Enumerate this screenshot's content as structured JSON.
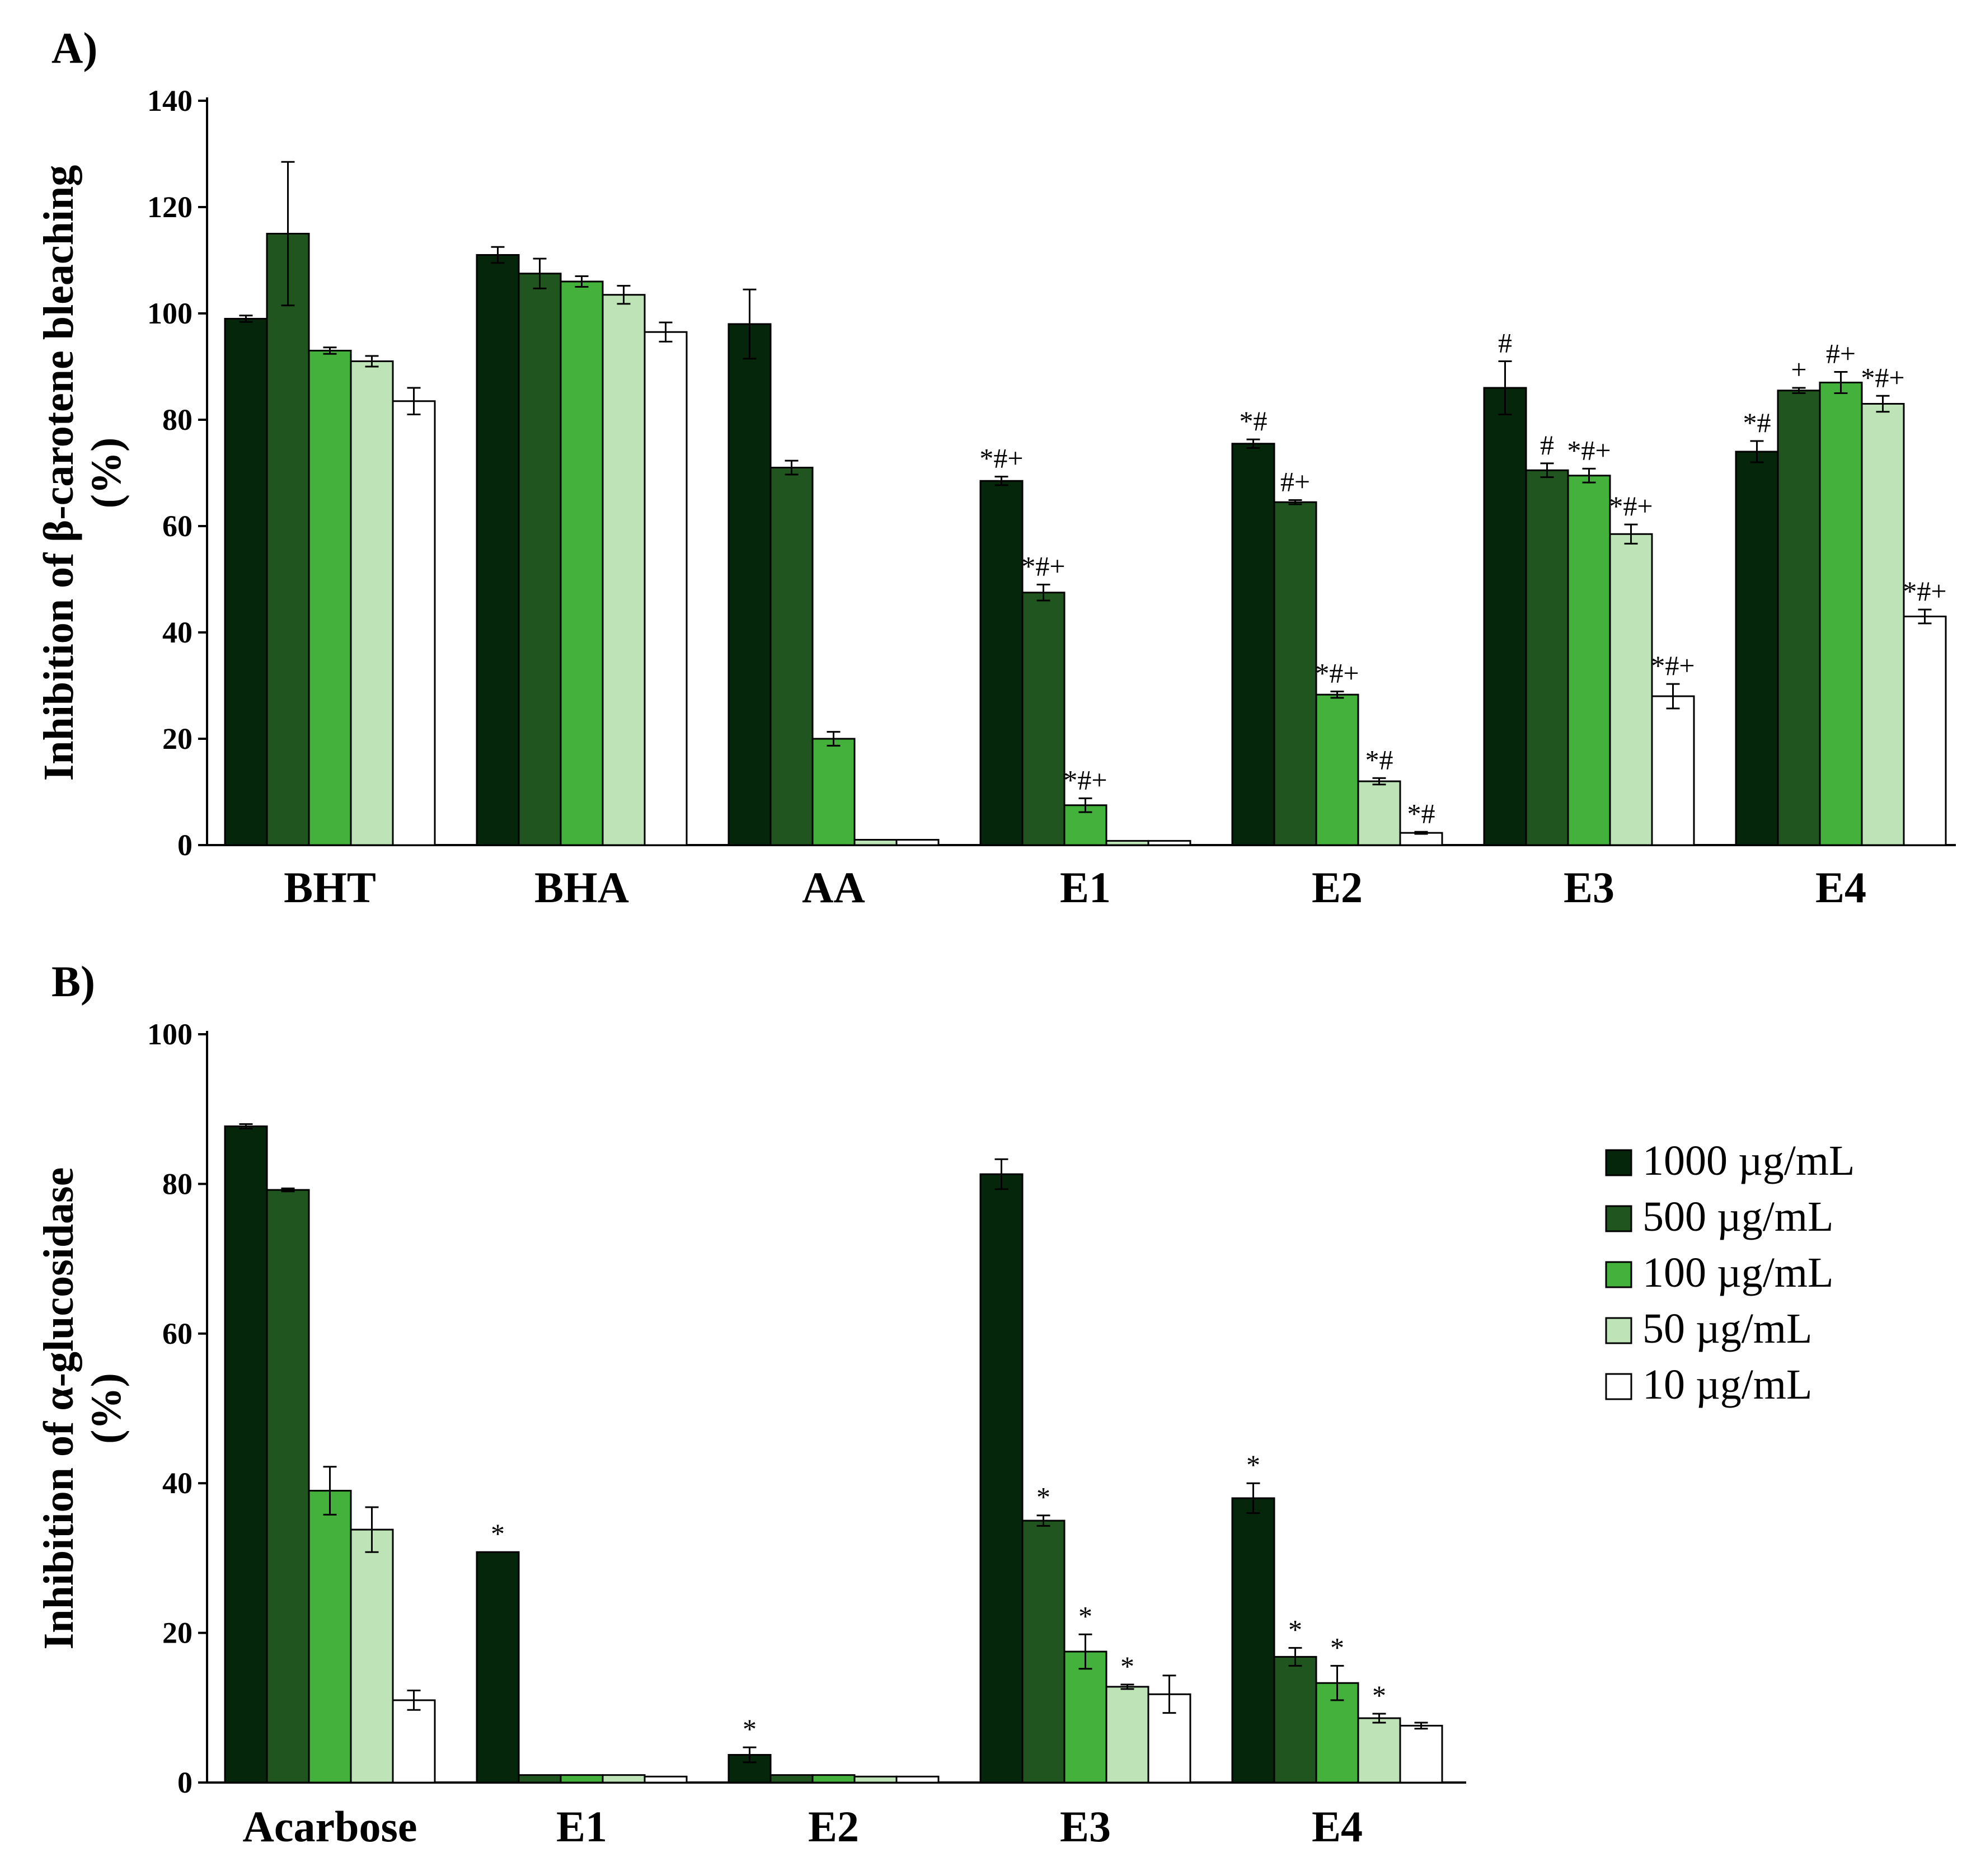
{
  "chart_data": [
    {
      "panel": "A)",
      "type": "bar",
      "ylabel_line1": "Inhibition of β-carotene  bleaching",
      "ylabel_line2": "(%)",
      "ylim": [
        0,
        140
      ],
      "yticks": [
        0,
        20,
        40,
        60,
        80,
        100,
        120,
        140
      ],
      "categories": [
        "BHT",
        "BHA",
        "AA",
        "E1",
        "E2",
        "E3",
        "E4"
      ],
      "series": [
        {
          "name": "1000 µg/mL",
          "values": [
            99,
            111,
            98,
            68.5,
            75.5,
            86,
            74
          ],
          "errors": [
            0.6,
            1.5,
            6.5,
            0.8,
            0.8,
            5,
            2
          ]
        },
        {
          "name": "500 µg/mL",
          "values": [
            115,
            107.5,
            71,
            47.5,
            64.5,
            70.5,
            85.5
          ],
          "errors": [
            13.5,
            2.8,
            1.3,
            1.5,
            0.4,
            1.3,
            0.5
          ]
        },
        {
          "name": "100 µg/mL",
          "values": [
            93,
            106,
            20,
            7.5,
            28.3,
            69.5,
            87
          ],
          "errors": [
            0.6,
            1,
            1.3,
            1.3,
            0.6,
            1.3,
            2
          ]
        },
        {
          "name": "50 µg/mL",
          "values": [
            91,
            103.5,
            1,
            0.8,
            12,
            58.5,
            83
          ],
          "errors": [
            1,
            1.7,
            0,
            0,
            0.6,
            1.8,
            1.5
          ]
        },
        {
          "name": "10 µg/mL",
          "values": [
            83.5,
            96.5,
            1,
            0.8,
            2.3,
            28,
            43
          ],
          "errors": [
            2.5,
            1.8,
            0,
            0,
            0.2,
            2.3,
            1.3
          ]
        }
      ],
      "annotations": [
        {
          "category": "E1",
          "series": 0,
          "text": "*#+"
        },
        {
          "category": "E1",
          "series": 1,
          "text": "*#+"
        },
        {
          "category": "E1",
          "series": 2,
          "text": "*#+"
        },
        {
          "category": "E2",
          "series": 0,
          "text": "*#"
        },
        {
          "category": "E2",
          "series": 1,
          "text": "#+"
        },
        {
          "category": "E2",
          "series": 2,
          "text": "*#+"
        },
        {
          "category": "E2",
          "series": 3,
          "text": "*#"
        },
        {
          "category": "E2",
          "series": 4,
          "text": "*#"
        },
        {
          "category": "E3",
          "series": 0,
          "text": "#"
        },
        {
          "category": "E3",
          "series": 1,
          "text": "#"
        },
        {
          "category": "E3",
          "series": 2,
          "text": "*#+"
        },
        {
          "category": "E3",
          "series": 3,
          "text": "*#+"
        },
        {
          "category": "E3",
          "series": 4,
          "text": "*#+"
        },
        {
          "category": "E4",
          "series": 0,
          "text": "*#"
        },
        {
          "category": "E4",
          "series": 1,
          "text": "+"
        },
        {
          "category": "E4",
          "series": 2,
          "text": "#+"
        },
        {
          "category": "E4",
          "series": 3,
          "text": "*#+"
        },
        {
          "category": "E4",
          "series": 4,
          "text": "*#+"
        }
      ]
    },
    {
      "panel": "B)",
      "type": "bar",
      "ylabel_line1": "Inhibition of α-glucosidase",
      "ylabel_line2": "(%)",
      "ylim": [
        0,
        100
      ],
      "yticks": [
        0,
        20,
        40,
        60,
        80,
        100
      ],
      "categories": [
        "Acarbose",
        "E1",
        "E2",
        "E3",
        "E4"
      ],
      "series": [
        {
          "name": "1000 µg/mL",
          "values": [
            87.7,
            30.8,
            3.7,
            81.3,
            38
          ],
          "errors": [
            0.3,
            0,
            1,
            2,
            2
          ]
        },
        {
          "name": "500 µg/mL",
          "values": [
            79.2,
            1,
            1,
            35,
            16.8
          ],
          "errors": [
            0.2,
            0,
            0,
            0.7,
            1.2
          ]
        },
        {
          "name": "100 µg/mL",
          "values": [
            39,
            1,
            1,
            17.5,
            13.3
          ],
          "errors": [
            3.2,
            0,
            0,
            2.3,
            2.3
          ]
        },
        {
          "name": "50 µg/mL",
          "values": [
            33.8,
            1,
            0.8,
            12.8,
            8.6
          ],
          "errors": [
            3,
            0,
            0,
            0.3,
            0.6
          ]
        },
        {
          "name": "10 µg/mL",
          "values": [
            11,
            0.8,
            0.8,
            11.8,
            7.6
          ],
          "errors": [
            1.3,
            0,
            0,
            2.5,
            0.4
          ]
        }
      ],
      "annotations": [
        {
          "category": "E1",
          "series": 0,
          "text": "*"
        },
        {
          "category": "E2",
          "series": 0,
          "text": "*"
        },
        {
          "category": "E3",
          "series": 1,
          "text": "*"
        },
        {
          "category": "E3",
          "series": 2,
          "text": "*"
        },
        {
          "category": "E3",
          "series": 3,
          "text": "*"
        },
        {
          "category": "E4",
          "series": 0,
          "text": "*"
        },
        {
          "category": "E4",
          "series": 1,
          "text": "*"
        },
        {
          "category": "E4",
          "series": 2,
          "text": "*"
        },
        {
          "category": "E4",
          "series": 3,
          "text": "*"
        }
      ]
    }
  ],
  "legend": {
    "position": "right of panel B",
    "items": [
      {
        "label": "1000 µg/mL",
        "color": "#06260b"
      },
      {
        "label": "500 µg/mL",
        "color": "#21551f"
      },
      {
        "label": "100 µg/mL",
        "color": "#45b13d"
      },
      {
        "label": "50 µg/mL",
        "color": "#bde3b6"
      },
      {
        "label": "10 µg/mL",
        "color": "#ffffff"
      }
    ]
  }
}
